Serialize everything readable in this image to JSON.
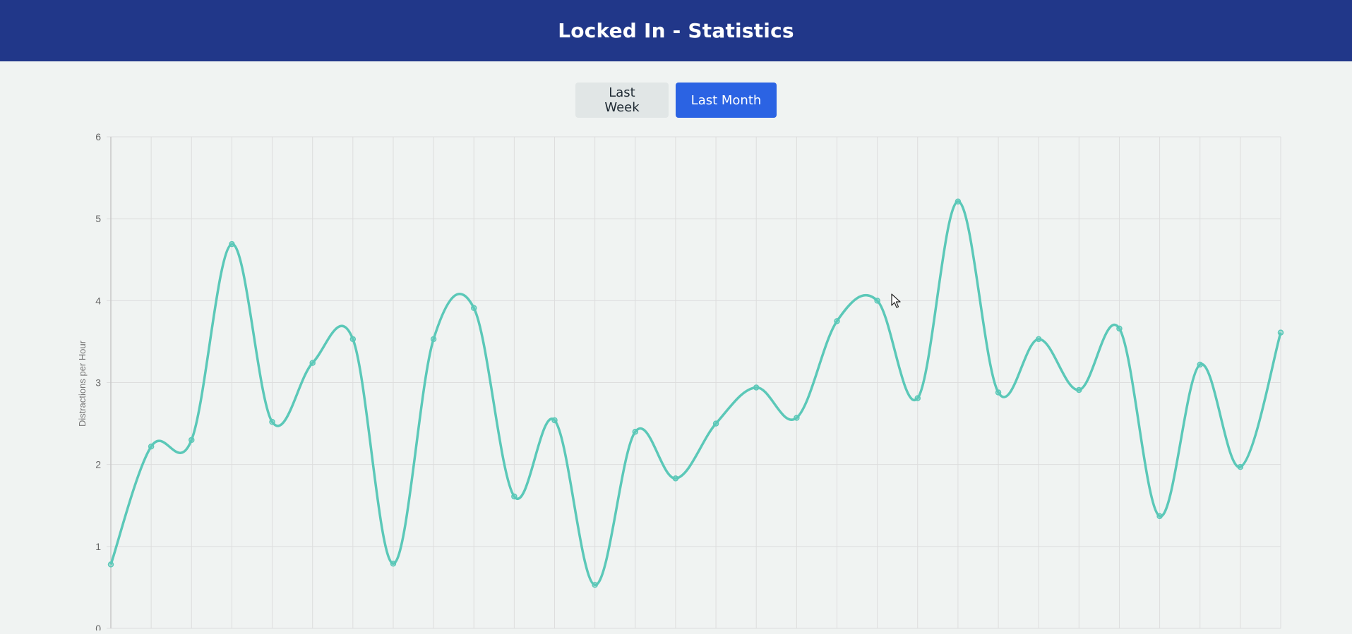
{
  "app": {
    "title": "Locked In - Statistics"
  },
  "controls": {
    "week_label": "Last Week",
    "month_label": "Last Month",
    "active": "Last Month"
  },
  "colors": {
    "header": "#213789",
    "active_button": "#2b63e3",
    "inactive_button": "#e1e6e6",
    "line": "#5bc8b8",
    "grid": "#dddddd",
    "background": "#f0f3f2"
  },
  "chart_data": {
    "type": "line",
    "title": "",
    "ylabel": "Distractions per Hour",
    "ylim": [
      0,
      6
    ],
    "yticks": [
      0,
      1,
      2,
      3,
      4,
      5,
      6
    ],
    "grid": true,
    "series": [
      {
        "values": [
          0.78,
          2.22,
          2.3,
          4.69,
          2.52,
          3.24,
          3.53,
          0.79,
          3.53,
          3.91,
          1.61,
          2.54,
          0.53,
          2.4,
          1.83,
          2.5,
          2.94,
          2.57,
          3.75,
          4.0,
          2.81,
          5.21,
          2.88,
          3.53,
          2.91,
          3.66,
          1.37,
          3.22,
          1.97,
          3.61
        ]
      }
    ]
  }
}
